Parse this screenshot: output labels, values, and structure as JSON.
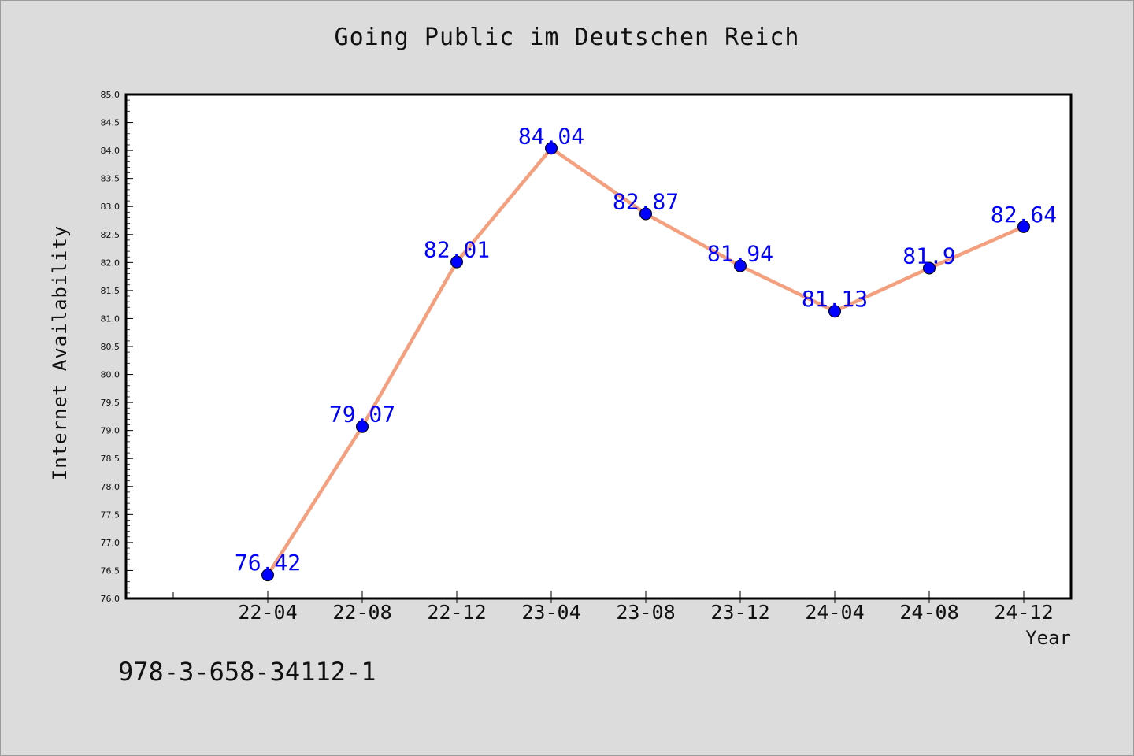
{
  "chart_data": {
    "type": "line",
    "title": "Going Public im Deutschen Reich",
    "xlabel": "Year",
    "ylabel": "Internet Availability",
    "categories": [
      "22-04",
      "22-08",
      "22-12",
      "23-04",
      "23-08",
      "23-12",
      "24-04",
      "24-08",
      "24-12"
    ],
    "values": [
      76.42,
      79.07,
      82.01,
      84.04,
      82.87,
      81.94,
      81.13,
      81.9,
      82.64
    ],
    "data_labels": [
      "76.42",
      "79.07",
      "82.01",
      "84.04",
      "82.87",
      "81.94",
      "81.13",
      "81.9",
      "82.64"
    ],
    "ylim": [
      76.0,
      85.0
    ],
    "yticks": [
      "76.0",
      "76.5",
      "77.0",
      "77.5",
      "78.0",
      "78.5",
      "79.0",
      "79.5",
      "80.0",
      "80.5",
      "81.0",
      "81.5",
      "82.0",
      "82.5",
      "83.0",
      "83.5",
      "84.0",
      "84.5",
      "85.0"
    ],
    "grid": false,
    "line_color": "#f4a07e",
    "marker_color": "#0000ff",
    "label_color": "#0000ff",
    "background": "#dcdcdc",
    "plot_background": "#ffffff"
  },
  "footnote": "978-3-658-34112-1"
}
